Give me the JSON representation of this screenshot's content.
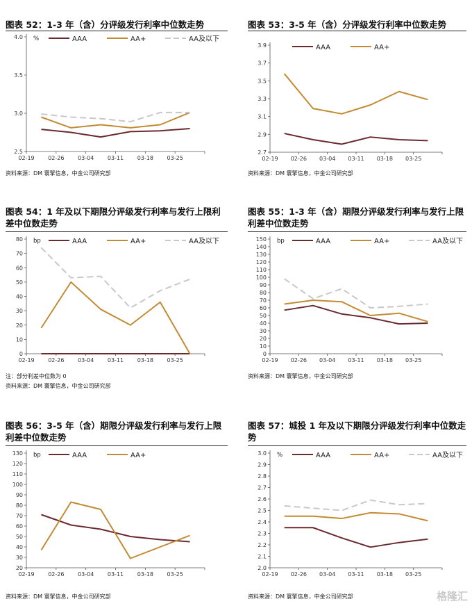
{
  "panels": [
    {
      "title": "图表 52：1-3 年（含）分评级发行利率中位数走势",
      "source": "资料来源：DM 寰擎信息，中金公司研究部",
      "note": ""
    },
    {
      "title": "图表 53：3-5 年（含）分评级发行利率中位数走势",
      "source": "资料来源：DM 寰擎信息，中金公司研究部",
      "note": ""
    },
    {
      "title": "图表 54：1 年及以下期限分评级发行利率与发行上限利差中位数走势",
      "source": "资料来源：DM 寰擎信息，中金公司研究部",
      "note": "注：部分利差中位数为 0"
    },
    {
      "title": "图表 55：1-3 年（含）期限分评级发行利率与发行上限利差中位数走势",
      "source": "资料来源：DM 寰擎信息，中金公司研究部",
      "note": ""
    },
    {
      "title": "图表 56：3-5 年（含）期限分评级发行利率与发行上限利差中位数走势",
      "source": "资料来源：DM 寰擎信息，中金公司研究部",
      "note": ""
    },
    {
      "title": "图表 57：城投 1 年及以下期限分评级发行利率中位数走势",
      "source": "资料来源：DM 寰擎信息，中金公司研究部",
      "note": ""
    }
  ],
  "colors": {
    "AAA": "#6b2a2f",
    "AA+": "#c28b33",
    "AA及以下": "#c8c8c8"
  },
  "watermark": "格隆汇",
  "chart_data": [
    {
      "type": "line",
      "categories": [
        "02-19",
        "02-26",
        "03-04",
        "03-11",
        "03-18",
        "03-25"
      ],
      "unit": "%",
      "ylim": [
        2.5,
        4.0
      ],
      "yticks": [
        "2.5",
        "3.0",
        "3.5",
        "4.0"
      ],
      "series": [
        {
          "name": "AAA",
          "values": [
            2.79,
            2.75,
            2.69,
            2.76,
            2.77,
            2.8
          ]
        },
        {
          "name": "AA+",
          "values": [
            2.95,
            2.81,
            2.85,
            2.81,
            2.85,
            3.01
          ]
        },
        {
          "name": "AA及以下",
          "values": [
            2.99,
            2.95,
            2.93,
            2.89,
            3.01,
            3.01
          ]
        }
      ]
    },
    {
      "type": "line",
      "categories": [
        "02-19",
        "02-26",
        "03-04",
        "03-11",
        "03-18",
        "03-25"
      ],
      "unit": "",
      "ylim": [
        2.7,
        3.9
      ],
      "yticks": [
        "2.7",
        "2.9",
        "3.1",
        "3.3",
        "3.5",
        "3.7",
        "3.9"
      ],
      "series": [
        {
          "name": "AAA",
          "values": [
            2.91,
            2.84,
            2.79,
            2.87,
            2.84,
            2.83
          ]
        },
        {
          "name": "AA+",
          "values": [
            3.58,
            3.19,
            3.13,
            3.23,
            3.38,
            3.29
          ]
        }
      ]
    },
    {
      "type": "line",
      "categories": [
        "02-19",
        "02-26",
        "03-04",
        "03-11",
        "03-18",
        "03-25"
      ],
      "unit": "bp",
      "ylim": [
        0,
        80
      ],
      "yticks": [
        "0",
        "10",
        "20",
        "30",
        "40",
        "50",
        "60",
        "70",
        "80"
      ],
      "series": [
        {
          "name": "AAA",
          "values": [
            0,
            0,
            0,
            0,
            0,
            0
          ]
        },
        {
          "name": "AA+",
          "values": [
            18,
            50,
            31,
            20,
            36,
            0
          ]
        },
        {
          "name": "AA及以下",
          "values": [
            74,
            53,
            54,
            32,
            44,
            52
          ]
        }
      ]
    },
    {
      "type": "line",
      "categories": [
        "02-19",
        "02-26",
        "03-04",
        "03-11",
        "03-18",
        "03-25"
      ],
      "unit": "bp",
      "ylim": [
        0,
        150
      ],
      "yticks": [
        "0",
        "10",
        "20",
        "30",
        "40",
        "50",
        "60",
        "70",
        "80",
        "90",
        "100",
        "110",
        "120",
        "130",
        "140",
        "150"
      ],
      "series": [
        {
          "name": "AAA",
          "values": [
            57,
            63,
            52,
            47,
            39,
            40
          ]
        },
        {
          "name": "AA+",
          "values": [
            65,
            70,
            68,
            50,
            53,
            42
          ]
        },
        {
          "name": "AA及以下",
          "values": [
            98,
            72,
            85,
            60,
            62,
            65
          ]
        }
      ]
    },
    {
      "type": "line",
      "categories": [
        "02-19",
        "02-26",
        "03-04",
        "03-11",
        "03-18",
        "03-25"
      ],
      "unit": "bp",
      "ylim": [
        20,
        130
      ],
      "yticks": [
        "20",
        "30",
        "40",
        "50",
        "60",
        "70",
        "80",
        "90",
        "100",
        "110",
        "120",
        "130"
      ],
      "series": [
        {
          "name": "AAA",
          "values": [
            71,
            61,
            57,
            50,
            47,
            45
          ]
        },
        {
          "name": "AA+",
          "values": [
            37,
            83,
            76,
            29,
            40,
            51
          ]
        }
      ]
    },
    {
      "type": "line",
      "categories": [
        "02-19",
        "02-26",
        "03-04",
        "03-11",
        "03-18",
        "03-25"
      ],
      "unit": "%",
      "ylim": [
        2.0,
        3.0
      ],
      "yticks": [
        "2.0",
        "2.1",
        "2.2",
        "2.3",
        "2.4",
        "2.5",
        "2.6",
        "2.7",
        "2.8",
        "2.9",
        "3.0"
      ],
      "series": [
        {
          "name": "AAA",
          "values": [
            2.35,
            2.35,
            2.26,
            2.18,
            2.22,
            2.25
          ]
        },
        {
          "name": "AA+",
          "values": [
            2.45,
            2.45,
            2.43,
            2.48,
            2.47,
            2.41
          ]
        },
        {
          "name": "AA及以下",
          "values": [
            2.54,
            2.52,
            2.5,
            2.59,
            2.55,
            2.56
          ]
        }
      ]
    }
  ]
}
